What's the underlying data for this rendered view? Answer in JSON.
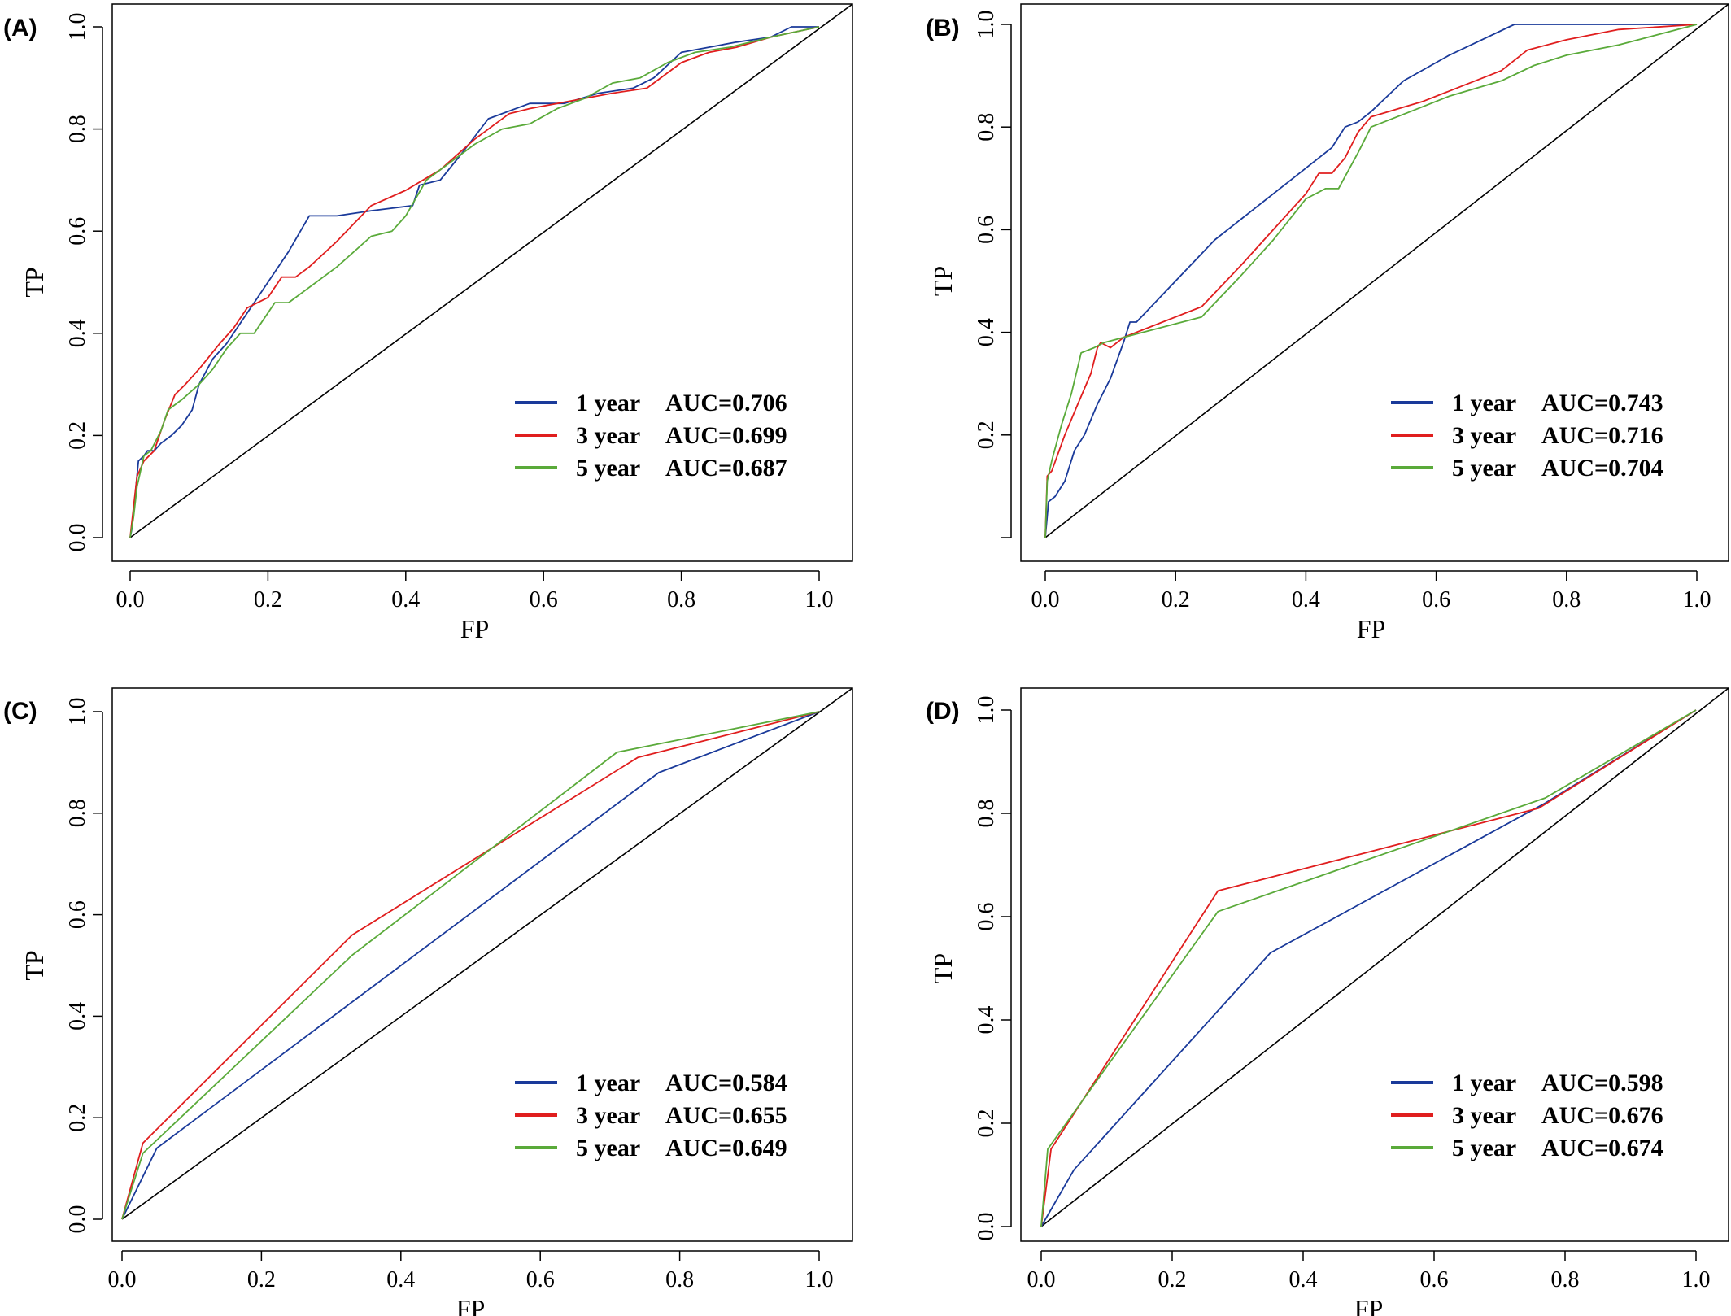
{
  "colors": {
    "1 year": "#1a3a9a",
    "3 year": "#e01e1e",
    "5 year": "#5aaa3a",
    "diagonal": "#000000"
  },
  "chart_data": [
    {
      "type": "line",
      "panel": "(A)",
      "xlabel": "FP",
      "ylabel": "TP",
      "xlim": [
        0,
        1
      ],
      "ylim": [
        0,
        1
      ],
      "x_ticks": [
        "0.0",
        "0.2",
        "0.4",
        "0.6",
        "0.8",
        "1.0"
      ],
      "y_ticks": [
        "0.0",
        "0.2",
        "0.4",
        "0.6",
        "0.8",
        "1.0"
      ],
      "legend_position": "bottom-right",
      "series": [
        {
          "name": "1 year",
          "auc_label": "AUC=0.706",
          "color": "#1a3a9a",
          "x": [
            0,
            0.003,
            0.007,
            0.012,
            0.02,
            0.025,
            0.035,
            0.045,
            0.06,
            0.075,
            0.09,
            0.1,
            0.12,
            0.14,
            0.16,
            0.18,
            0.21,
            0.23,
            0.26,
            0.3,
            0.35,
            0.41,
            0.42,
            0.45,
            0.48,
            0.52,
            0.58,
            0.63,
            0.68,
            0.73,
            0.76,
            0.8,
            0.84,
            0.88,
            0.93,
            0.96,
            1.0
          ],
          "y": [
            0,
            0.02,
            0.08,
            0.15,
            0.16,
            0.17,
            0.17,
            0.185,
            0.2,
            0.22,
            0.25,
            0.3,
            0.35,
            0.38,
            0.42,
            0.46,
            0.52,
            0.56,
            0.63,
            0.63,
            0.64,
            0.65,
            0.69,
            0.7,
            0.75,
            0.82,
            0.85,
            0.85,
            0.87,
            0.88,
            0.9,
            0.95,
            0.96,
            0.97,
            0.98,
            1.0,
            1.0
          ]
        },
        {
          "name": "3 year",
          "auc_label": "AUC=0.699",
          "color": "#e01e1e",
          "x": [
            0,
            0.005,
            0.01,
            0.02,
            0.035,
            0.05,
            0.065,
            0.08,
            0.1,
            0.13,
            0.15,
            0.17,
            0.2,
            0.22,
            0.24,
            0.26,
            0.3,
            0.35,
            0.4,
            0.45,
            0.5,
            0.55,
            0.58,
            0.62,
            0.66,
            0.7,
            0.75,
            0.8,
            0.84,
            0.88,
            0.93,
            1.0
          ],
          "y": [
            0,
            0.06,
            0.12,
            0.15,
            0.17,
            0.23,
            0.28,
            0.3,
            0.33,
            0.38,
            0.41,
            0.45,
            0.47,
            0.51,
            0.51,
            0.53,
            0.58,
            0.65,
            0.68,
            0.72,
            0.78,
            0.83,
            0.84,
            0.85,
            0.86,
            0.87,
            0.88,
            0.93,
            0.95,
            0.96,
            0.98,
            1.0
          ]
        },
        {
          "name": "5 year",
          "auc_label": "AUC=0.687",
          "color": "#5aaa3a",
          "x": [
            0,
            0.005,
            0.01,
            0.02,
            0.03,
            0.045,
            0.055,
            0.075,
            0.1,
            0.12,
            0.14,
            0.16,
            0.18,
            0.21,
            0.23,
            0.26,
            0.3,
            0.35,
            0.38,
            0.4,
            0.43,
            0.46,
            0.5,
            0.54,
            0.58,
            0.62,
            0.66,
            0.7,
            0.74,
            0.78,
            0.82,
            0.87,
            0.93,
            1.0
          ],
          "y": [
            0,
            0.04,
            0.1,
            0.16,
            0.17,
            0.21,
            0.25,
            0.27,
            0.3,
            0.33,
            0.37,
            0.4,
            0.4,
            0.46,
            0.46,
            0.49,
            0.53,
            0.59,
            0.6,
            0.63,
            0.7,
            0.73,
            0.77,
            0.8,
            0.81,
            0.84,
            0.86,
            0.89,
            0.9,
            0.93,
            0.95,
            0.96,
            0.98,
            1.0
          ]
        }
      ]
    },
    {
      "type": "line",
      "panel": "(B)",
      "xlabel": "FP",
      "ylabel": "TP",
      "xlim": [
        0,
        1
      ],
      "ylim": [
        0,
        1
      ],
      "x_ticks": [
        "0.0",
        "0.2",
        "0.4",
        "0.6",
        "0.8",
        "1.0"
      ],
      "y_ticks": [
        "",
        "0.2",
        "0.4",
        "0.6",
        "0.8",
        "1.0"
      ],
      "legend_position": "bottom-right",
      "series": [
        {
          "name": "1 year",
          "auc_label": "AUC=0.743",
          "color": "#1a3a9a",
          "x": [
            0,
            0.005,
            0.015,
            0.03,
            0.045,
            0.06,
            0.08,
            0.1,
            0.12,
            0.13,
            0.14,
            0.2,
            0.26,
            0.32,
            0.38,
            0.42,
            0.44,
            0.46,
            0.48,
            0.5,
            0.55,
            0.62,
            0.67,
            0.72,
            0.78,
            0.85,
            0.92,
            1.0
          ],
          "y": [
            0,
            0.07,
            0.08,
            0.11,
            0.17,
            0.2,
            0.26,
            0.31,
            0.38,
            0.42,
            0.42,
            0.5,
            0.58,
            0.64,
            0.7,
            0.74,
            0.76,
            0.8,
            0.81,
            0.83,
            0.89,
            0.94,
            0.97,
            1.0,
            1.0,
            1.0,
            1.0,
            1.0
          ]
        },
        {
          "name": "3 year",
          "auc_label": "AUC=0.716",
          "color": "#e01e1e",
          "x": [
            0,
            0.003,
            0.01,
            0.03,
            0.05,
            0.07,
            0.08,
            0.085,
            0.1,
            0.12,
            0.24,
            0.3,
            0.35,
            0.4,
            0.42,
            0.44,
            0.46,
            0.48,
            0.5,
            0.58,
            0.64,
            0.7,
            0.74,
            0.8,
            0.88,
            1.0
          ],
          "y": [
            0,
            0.12,
            0.13,
            0.2,
            0.26,
            0.32,
            0.37,
            0.38,
            0.37,
            0.39,
            0.45,
            0.53,
            0.6,
            0.67,
            0.71,
            0.71,
            0.74,
            0.79,
            0.82,
            0.85,
            0.88,
            0.91,
            0.95,
            0.97,
            0.99,
            1.0
          ]
        },
        {
          "name": "5 year",
          "auc_label": "AUC=0.704",
          "color": "#5aaa3a",
          "x": [
            0,
            0.003,
            0.01,
            0.025,
            0.04,
            0.055,
            0.075,
            0.09,
            0.12,
            0.24,
            0.3,
            0.35,
            0.4,
            0.43,
            0.45,
            0.48,
            0.5,
            0.56,
            0.62,
            0.7,
            0.75,
            0.8,
            0.88,
            1.0
          ],
          "y": [
            0,
            0.11,
            0.15,
            0.22,
            0.28,
            0.36,
            0.37,
            0.38,
            0.39,
            0.43,
            0.51,
            0.58,
            0.66,
            0.68,
            0.68,
            0.75,
            0.8,
            0.83,
            0.86,
            0.89,
            0.92,
            0.94,
            0.96,
            1.0
          ]
        }
      ]
    },
    {
      "type": "line",
      "panel": "(C)",
      "xlabel": "FP",
      "ylabel": "TP",
      "xlim": [
        0,
        1
      ],
      "ylim": [
        0,
        1
      ],
      "x_ticks": [
        "0.0",
        "0.2",
        "0.4",
        "0.6",
        "0.8",
        "1.0"
      ],
      "y_ticks": [
        "0.0",
        "0.2",
        "0.4",
        "0.6",
        "0.8",
        "1.0"
      ],
      "legend_position": "bottom-right",
      "series": [
        {
          "name": "1 year",
          "auc_label": "AUC=0.584",
          "color": "#1a3a9a",
          "x": [
            0,
            0.05,
            0.77,
            1.0
          ],
          "y": [
            0,
            0.14,
            0.88,
            1.0
          ]
        },
        {
          "name": "3 year",
          "auc_label": "AUC=0.655",
          "color": "#e01e1e",
          "x": [
            0,
            0.03,
            0.33,
            0.74,
            1.0
          ],
          "y": [
            0,
            0.15,
            0.56,
            0.91,
            1.0
          ]
        },
        {
          "name": "5 year",
          "auc_label": "AUC=0.649",
          "color": "#5aaa3a",
          "x": [
            0,
            0.03,
            0.33,
            0.71,
            1.0
          ],
          "y": [
            0,
            0.13,
            0.52,
            0.92,
            1.0
          ]
        }
      ]
    },
    {
      "type": "line",
      "panel": "(D)",
      "xlabel": "FP",
      "ylabel": "TP",
      "xlim": [
        0,
        1
      ],
      "ylim": [
        0,
        1
      ],
      "x_ticks": [
        "0.0",
        "0.2",
        "0.4",
        "0.6",
        "0.8",
        "1.0"
      ],
      "y_ticks": [
        "0.0",
        "0.2",
        "0.4",
        "0.6",
        "0.8",
        "1.0"
      ],
      "legend_position": "bottom-right",
      "series": [
        {
          "name": "1 year",
          "auc_label": "AUC=0.598",
          "color": "#1a3a9a",
          "x": [
            0,
            0.05,
            0.35,
            0.77,
            1.0
          ],
          "y": [
            0,
            0.11,
            0.53,
            0.82,
            1.0
          ]
        },
        {
          "name": "3 year",
          "auc_label": "AUC=0.676",
          "color": "#e01e1e",
          "x": [
            0,
            0.015,
            0.27,
            0.76,
            1.0
          ],
          "y": [
            0,
            0.15,
            0.65,
            0.81,
            1.0
          ]
        },
        {
          "name": "5 year",
          "auc_label": "AUC=0.674",
          "color": "#5aaa3a",
          "x": [
            0,
            0.01,
            0.27,
            0.77,
            1.0
          ],
          "y": [
            0,
            0.15,
            0.61,
            0.83,
            1.0
          ]
        }
      ]
    }
  ]
}
